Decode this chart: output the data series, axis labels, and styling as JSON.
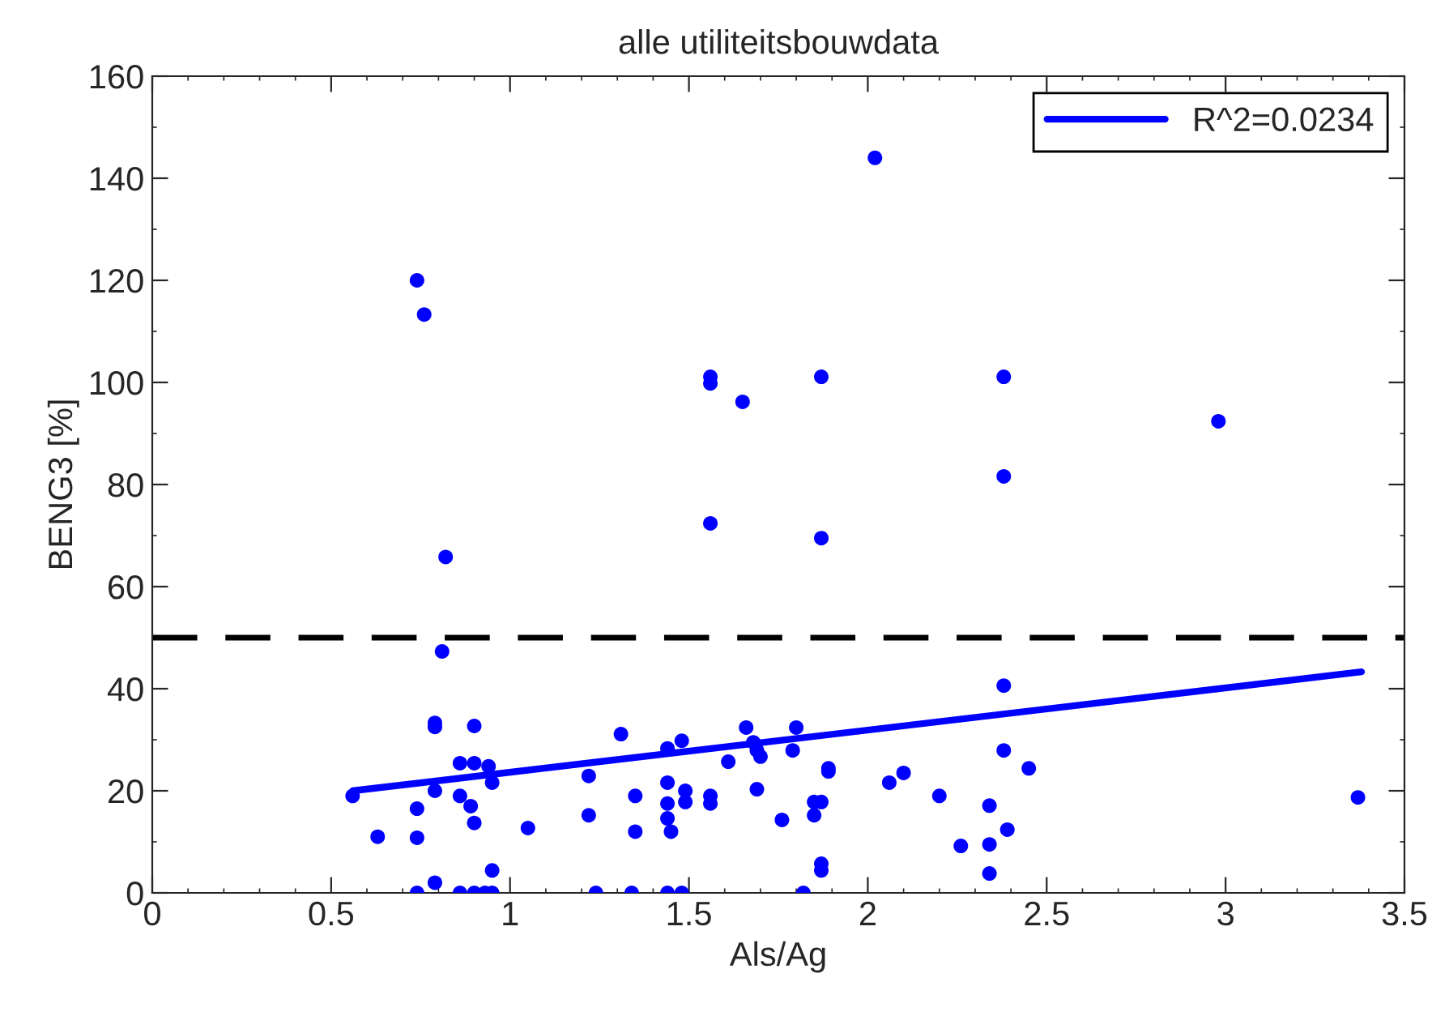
{
  "chart_data": {
    "type": "scatter",
    "title": "alle utiliteitsbouwdata",
    "xlabel": "Als/Ag",
    "ylabel": "BENG3 [%]",
    "xlim": [
      0,
      3.5
    ],
    "xticks": [
      0,
      0.5,
      1,
      1.5,
      2,
      2.5,
      3,
      3.5
    ],
    "ylim": [
      0,
      160
    ],
    "yticks": [
      0,
      20,
      40,
      60,
      80,
      100,
      120,
      140,
      160
    ],
    "grid": false,
    "legend": "top right",
    "marker": "circle",
    "ref_lines": [
      {
        "axis": "y",
        "value": 50,
        "color": "#000000",
        "line_style": "dashed"
      }
    ],
    "series": [
      {
        "color": "#0000ff",
        "x": [
          0.56,
          0.63,
          0.74,
          0.76,
          0.74,
          0.74,
          0.74,
          0.79,
          0.79,
          0.79,
          0.79,
          0.81,
          0.82,
          0.86,
          0.86,
          0.86,
          0.89,
          0.9,
          0.9,
          0.9,
          0.9,
          0.93,
          0.95,
          0.94,
          0.95,
          0.95,
          1.05,
          1.22,
          1.22,
          1.24,
          1.31,
          1.35,
          1.35,
          1.34,
          1.44,
          1.44,
          1.44,
          1.44,
          1.45,
          1.48,
          1.44,
          1.48,
          1.49,
          1.49,
          1.56,
          1.56,
          1.61,
          1.66,
          1.68,
          1.69,
          1.7,
          1.69,
          1.76,
          1.79,
          1.8,
          1.82,
          1.85,
          1.85,
          1.87,
          1.87,
          1.87,
          1.89,
          1.89,
          2.06,
          2.1,
          2.2,
          2.26,
          2.34,
          2.34,
          2.34,
          2.38,
          2.38,
          2.39,
          2.45,
          3.37,
          1.56,
          1.56,
          1.65,
          1.87,
          2.38,
          2.98,
          2.38,
          1.56,
          1.87,
          2.02
        ],
        "values": [
          19.0,
          11,
          120,
          113.3,
          16.5,
          10.8,
          0,
          2,
          32.5,
          33.3,
          20,
          47.3,
          65.8,
          25.4,
          19,
          0,
          17,
          32.7,
          25.4,
          13.7,
          0,
          0,
          0,
          24.8,
          21.6,
          4.4,
          12.7,
          22.9,
          15.2,
          0,
          31.1,
          19,
          12,
          0,
          28.3,
          21.6,
          17.5,
          14.6,
          12,
          29.8,
          0,
          0,
          20,
          17.8,
          19,
          17.5,
          25.7,
          32.4,
          29.5,
          27.9,
          26.7,
          20.3,
          14.3,
          27.9,
          32.4,
          0,
          17.8,
          15.2,
          17.8,
          4.4,
          5.7,
          24.4,
          23.8,
          21.6,
          23.5,
          19,
          9.2,
          17.1,
          9.5,
          3.8,
          40.6,
          27.9,
          12.4,
          24.4,
          18.7,
          101.1,
          99.8,
          96.2,
          101.1,
          101.1,
          92.4,
          81.6,
          72.4,
          69.5,
          144
        ]
      },
      {
        "type": "line",
        "name": "R^2=0.0234",
        "color": "#0000ff",
        "x": [
          0.56,
          3.38
        ],
        "values": [
          20,
          43.3
        ],
        "marker": "none",
        "line_style": "solid"
      }
    ]
  }
}
